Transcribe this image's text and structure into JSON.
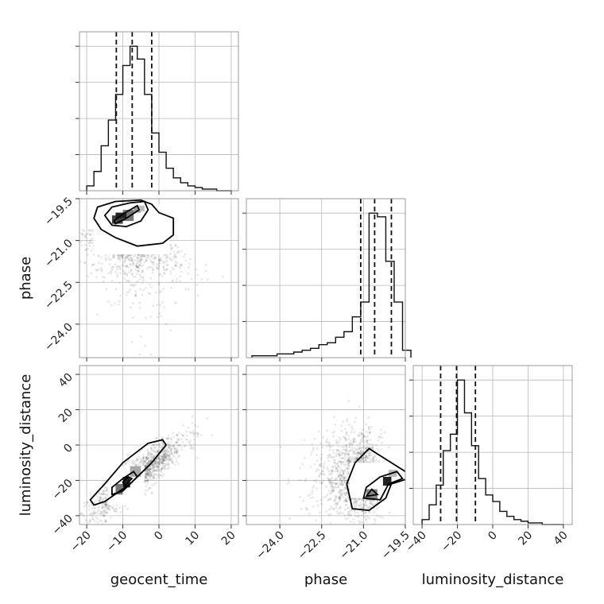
{
  "chart_data": {
    "type": "scatter",
    "parameters": [
      "geocent_time",
      "phase",
      "luminosity_distance"
    ],
    "ranges": {
      "geocent_time": [
        -22,
        22
      ],
      "phase": [
        -25.2,
        -19.5
      ],
      "luminosity_distance": [
        -45,
        45
      ]
    },
    "ticks": {
      "geocent_time": [
        -20,
        -10,
        0,
        10,
        20
      ],
      "phase_x": [
        -24.0,
        -22.5,
        -21.0,
        -19.5
      ],
      "phase_y": [
        -19.5,
        -21.0,
        -22.5,
        -24.0
      ],
      "luminosity_distance": [
        -40,
        -20,
        0,
        20,
        40
      ]
    },
    "tick_labels": {
      "geocent_time": [
        "−20",
        "−10",
        "0",
        "10",
        "20"
      ],
      "phase_x": [
        "−24.0",
        "−22.5",
        "−21.0",
        "−19.5"
      ],
      "phase_y": [
        "−19.5",
        "−21.0",
        "−22.5",
        "−24.0"
      ],
      "luminosity_distance": [
        "−40",
        "−20",
        "0",
        "20",
        "40"
      ]
    },
    "axis_labels": {
      "x": [
        "geocent_time",
        "phase",
        "luminosity_distance"
      ],
      "y": [
        "",
        "phase",
        "luminosity_distance"
      ]
    },
    "histograms": {
      "geocent_time": {
        "bin_edges": [
          -20,
          -18,
          -16,
          -14,
          -12,
          -10,
          -8,
          -6,
          -4,
          -2,
          0,
          2,
          4,
          6,
          8,
          10,
          12,
          14,
          16,
          18,
          20
        ],
        "counts": [
          3,
          12,
          28,
          44,
          60,
          78,
          90,
          82,
          60,
          36,
          24,
          14,
          8,
          5,
          3,
          2,
          1,
          1,
          0,
          0
        ],
        "quantiles": [
          -11.8,
          -7.4,
          -2.0
        ]
      },
      "phase": {
        "bin_edges": [
          -25.0,
          -24.7,
          -24.4,
          -24.1,
          -23.8,
          -23.5,
          -23.2,
          -22.9,
          -22.6,
          -22.3,
          -22.0,
          -21.7,
          -21.4,
          -21.1,
          -20.8,
          -20.5,
          -20.2,
          -19.9,
          -19.6,
          -19.3
        ],
        "counts": [
          1,
          1,
          1,
          2,
          2,
          3,
          4,
          5,
          7,
          8,
          11,
          14,
          22,
          30,
          78,
          76,
          52,
          30,
          4
        ],
        "quantiles": [
          -21.1,
          -20.6,
          -20.0
        ]
      },
      "luminosity_distance": {
        "bin_edges": [
          -40,
          -36,
          -32,
          -28,
          -24,
          -20,
          -16,
          -12,
          -8,
          -4,
          0,
          4,
          8,
          12,
          16,
          20,
          24,
          28,
          32,
          36,
          40
        ],
        "counts": [
          3,
          12,
          24,
          45,
          55,
          88,
          68,
          48,
          28,
          18,
          14,
          8,
          5,
          3,
          2,
          1,
          1,
          0,
          0,
          0
        ],
        "quantiles": [
          -29.5,
          -20.5,
          -9.8
        ]
      }
    },
    "grid": true
  }
}
